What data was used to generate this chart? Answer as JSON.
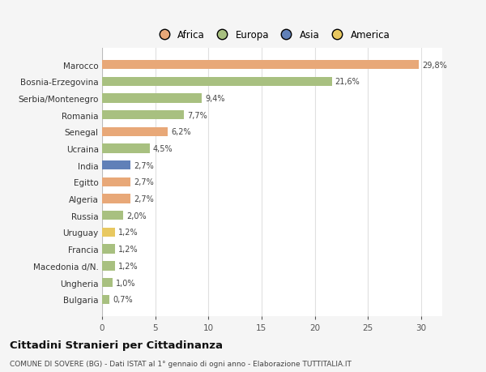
{
  "categories": [
    "Bulgaria",
    "Ungheria",
    "Macedonia d/N.",
    "Francia",
    "Uruguay",
    "Russia",
    "Algeria",
    "Egitto",
    "India",
    "Ucraina",
    "Senegal",
    "Romania",
    "Serbia/Montenegro",
    "Bosnia-Erzegovina",
    "Marocco"
  ],
  "values": [
    0.7,
    1.0,
    1.2,
    1.2,
    1.2,
    2.0,
    2.7,
    2.7,
    2.7,
    4.5,
    6.2,
    7.7,
    9.4,
    21.6,
    29.8
  ],
  "labels": [
    "0,7%",
    "1,0%",
    "1,2%",
    "1,2%",
    "1,2%",
    "2,0%",
    "2,7%",
    "2,7%",
    "2,7%",
    "4,5%",
    "6,2%",
    "7,7%",
    "9,4%",
    "21,6%",
    "29,8%"
  ],
  "colors": [
    "#a8c080",
    "#a8c080",
    "#a8c080",
    "#a8c080",
    "#e8c860",
    "#a8c080",
    "#e8a878",
    "#e8a878",
    "#6080b8",
    "#a8c080",
    "#e8a878",
    "#a8c080",
    "#a8c080",
    "#a8c080",
    "#e8a878"
  ],
  "continent_labels": [
    "Africa",
    "Europa",
    "Asia",
    "America"
  ],
  "continent_colors": [
    "#e8a878",
    "#a8c080",
    "#6080b8",
    "#e8c860"
  ],
  "title": "Cittadini Stranieri per Cittadinanza",
  "subtitle": "COMUNE DI SOVERE (BG) - Dati ISTAT al 1° gennaio di ogni anno - Elaborazione TUTTITALIA.IT",
  "xlim": [
    0,
    32
  ],
  "xticks": [
    0,
    5,
    10,
    15,
    20,
    25,
    30
  ],
  "background_color": "#f5f5f5",
  "bar_background": "#ffffff",
  "grid_color": "#e0e0e0"
}
